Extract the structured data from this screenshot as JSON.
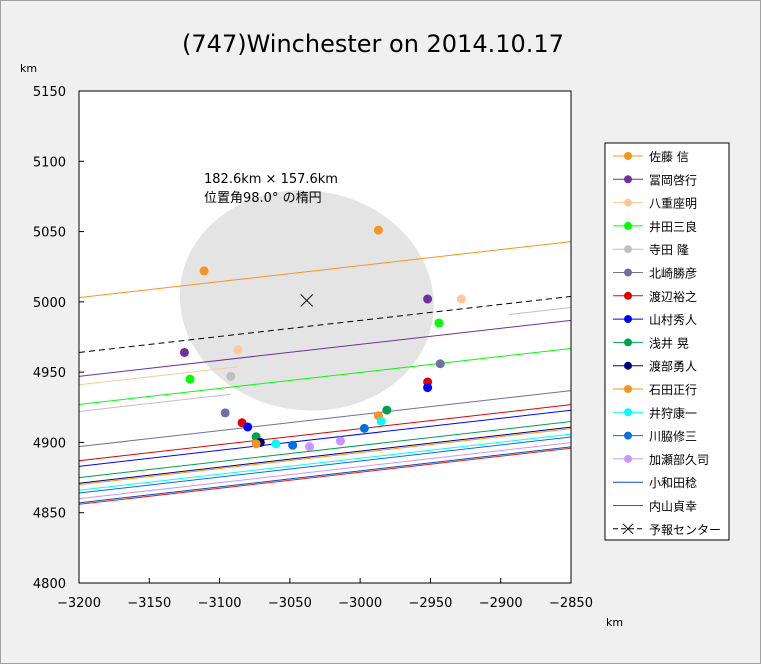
{
  "chart_data": {
    "type": "line",
    "title": "(747)Winchester on 2014.10.17",
    "xlabel": "km",
    "ylabel": "km",
    "xlim": [
      -3200,
      -2850
    ],
    "ylim": [
      4800,
      5150
    ],
    "xticks": [
      -3200,
      -3150,
      -3100,
      -3050,
      -3000,
      -2950,
      -2900,
      -2850
    ],
    "yticks": [
      4800,
      4850,
      4900,
      4950,
      5000,
      5050,
      5100,
      5150
    ],
    "grid": false,
    "legend_position": "right",
    "annotation_line1": "182.6km × 157.6km",
    "annotation_line2": "位置角98.0° の楕円",
    "ellipse": {
      "center": [
        -3038,
        5001
      ],
      "major_km": 182.6,
      "minor_km": 157.6,
      "position_angle_deg": 98.0,
      "fill": "#e4e4e4"
    },
    "slope": 0.1139,
    "series": [
      {
        "name": "佐藤 信",
        "color": "#f7941d",
        "y_at_left": 5003,
        "points": [
          [
            -3111,
            5022
          ],
          [
            -2987,
            5051
          ]
        ],
        "marker": "dot"
      },
      {
        "name": "冨岡啓行",
        "color": "#7030a0",
        "y_at_left": 4947,
        "points": [
          [
            -3125,
            4964
          ],
          [
            -2952,
            5002
          ]
        ],
        "marker": "dot"
      },
      {
        "name": "八重座明",
        "color": "#ffc896",
        "y_at_left": 4941,
        "x_start": -3200,
        "x_end": -3087,
        "points": [
          [
            -3087,
            4966
          ],
          [
            -2928,
            5002
          ]
        ],
        "marker": "dot"
      },
      {
        "name": "井田三良",
        "color": "#00ff00",
        "y_at_left": 4927,
        "points": [
          [
            -3121,
            4945
          ],
          [
            -2944,
            4985
          ]
        ],
        "marker": "dot"
      },
      {
        "name": "寺田 隆",
        "color": "#c0c0c0",
        "y_at_left": 4922,
        "x_start": -3200,
        "x_end": -3092,
        "points": [
          [
            -3092,
            4947
          ]
        ],
        "marker": "dot"
      },
      {
        "name": "北崎勝彦",
        "color": "#7070a0",
        "y_at_left": 4897,
        "points": [
          [
            -3096,
            4921
          ],
          [
            -2943,
            4956
          ]
        ],
        "marker": "dot"
      },
      {
        "name": "渡辺裕之",
        "color": "#e00000",
        "y_at_left": 4887,
        "points": [
          [
            -3084,
            4914
          ],
          [
            -2952,
            4943
          ]
        ],
        "marker": "dot"
      },
      {
        "name": "山村秀人",
        "color": "#0000ff",
        "y_at_left": 4883,
        "points": [
          [
            -3080,
            4911
          ],
          [
            -2952,
            4939
          ]
        ],
        "marker": "dot"
      },
      {
        "name": "浅井 晃",
        "color": "#00a050",
        "y_at_left": 4875,
        "points": [
          [
            -3074,
            4904
          ],
          [
            -2981,
            4923
          ]
        ],
        "marker": "dot"
      },
      {
        "name": "渡部勇人",
        "color": "#000080",
        "y_at_left": 4871,
        "points": [
          [
            -3071,
            4900
          ]
        ],
        "marker": "dot"
      },
      {
        "name": "石田正行",
        "color": "#f7941d",
        "y_at_left": 4870,
        "points": [
          [
            -3074,
            4899
          ],
          [
            -2987,
            4919
          ]
        ],
        "marker": "dot"
      },
      {
        "name": "井狩康一",
        "color": "#00ffff",
        "y_at_left": 4866,
        "points": [
          [
            -3060,
            4899
          ],
          [
            -2985,
            4915
          ]
        ],
        "marker": "dot"
      },
      {
        "name": "川脇修三",
        "color": "#0070e0",
        "y_at_left": 4864,
        "points": [
          [
            -3048,
            4898
          ],
          [
            -2997,
            4910
          ]
        ],
        "marker": "dot"
      },
      {
        "name": "加瀬部久司",
        "color": "#c896ff",
        "y_at_left": 4860,
        "points": [
          [
            -3036,
            4897
          ],
          [
            -3014,
            4901
          ]
        ],
        "marker": "dot"
      },
      {
        "name": "小和田稔",
        "color": "#0050c0",
        "y_at_left": 4857,
        "points": [],
        "marker": "none"
      },
      {
        "name": "内山貞幸",
        "color": "#e02020",
        "y_at_left": 4856,
        "points": [],
        "marker": "none"
      },
      {
        "name": "予報センター",
        "color": "#000000",
        "y_at_left": 4964,
        "points": [
          [
            -3038,
            5001
          ]
        ],
        "marker": "x",
        "dashed": true
      }
    ],
    "extra_segment": {
      "color": "#c0c0c0",
      "x_start": -2894,
      "y_at_start": 4991
    }
  }
}
